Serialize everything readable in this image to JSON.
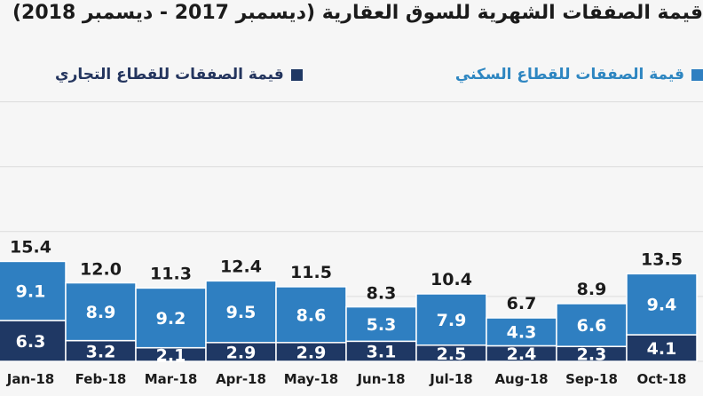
{
  "title": "قيمة الصفقات الشهرية للسوق العقارية (ديسمبر 2017 - ديسمبر 2018)",
  "colors": {
    "residential": "#2f7fc1",
    "commercial": "#1f3864",
    "grid": "#dcdcdc",
    "text": "#1b1b1b"
  },
  "legend": {
    "residential": "قيمة الصفقات للقطاع السكني",
    "commercial": "قيمة الصفقات للقطاع التجاري"
  },
  "chart_data": {
    "type": "bar",
    "stacked": true,
    "categories": [
      "Jan-18",
      "Feb-18",
      "Mar-18",
      "Apr-18",
      "May-18",
      "Jun-18",
      "Jul-18",
      "Aug-18",
      "Sep-18",
      "Oct-18"
    ],
    "totals": [
      15.4,
      12.0,
      11.3,
      12.4,
      11.5,
      8.3,
      10.4,
      6.7,
      8.9,
      13.5
    ],
    "series": [
      {
        "name": "قيمة الصفقات للقطاع التجاري",
        "values": [
          6.3,
          3.2,
          2.1,
          2.9,
          2.9,
          3.1,
          2.5,
          2.4,
          2.3,
          4.1
        ]
      },
      {
        "name": "قيمة الصفقات للقطاع السكني",
        "values": [
          9.1,
          8.9,
          9.2,
          9.5,
          8.6,
          5.3,
          7.9,
          4.3,
          6.6,
          9.4
        ]
      }
    ],
    "ylim": [
      0,
      42
    ],
    "grid": true,
    "legend_position": "top"
  }
}
